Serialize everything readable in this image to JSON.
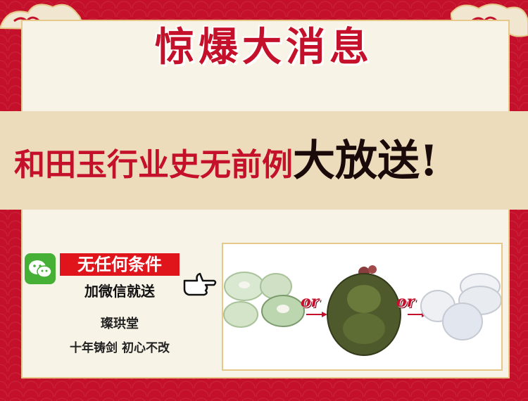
{
  "colors": {
    "background_red": "#c4102a",
    "panel_cream": "#f8f3e7",
    "banner_tan": "#ecdcbc",
    "accent_red": "#e0141b",
    "wechat_green": "#45b035"
  },
  "title": "惊爆大消息",
  "banner": {
    "prefix": "和田玉行业史无前例",
    "emphasis": "大放送!"
  },
  "promo": {
    "badge": "无任何条件",
    "sub": "加微信就送"
  },
  "brand": "璨珙堂",
  "slogan": "十年铸剑 初心不改",
  "products": {
    "or_labels": [
      "or",
      "or"
    ]
  },
  "icons": [
    "wechat-icon",
    "pointing-hand-icon",
    "cloud-ornament-icon"
  ]
}
